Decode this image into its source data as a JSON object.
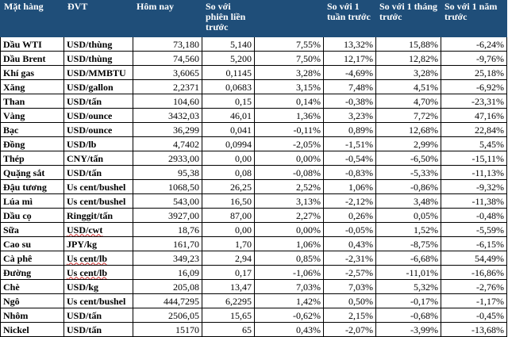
{
  "headers": [
    "Mặt hàng",
    "ĐVT",
    "Hôm nay",
    "So với phiên liền trước",
    "",
    "So với 1 tuần trước",
    "So với 1 tháng trước",
    "So với 1 năm trước"
  ],
  "rows": [
    [
      "Dầu WTI",
      "USD/thùng",
      "73,180",
      "5,140",
      "7,55%",
      "13,32%",
      "15,88%",
      "-6,24%"
    ],
    [
      "Dầu Brent",
      "USD/thùng",
      "74,560",
      "5,200",
      "7,50%",
      "12,17%",
      "12,82%",
      "-9,76%"
    ],
    [
      "Khí gas",
      "USD/MMBTU",
      "3,6065",
      "0,1145",
      "3,28%",
      "-4,69%",
      "3,28%",
      "25,18%"
    ],
    [
      "Xăng",
      "USD/gallon",
      "2,2371",
      "0,0683",
      "3,15%",
      "7,48%",
      "4,51%",
      "-6,92%"
    ],
    [
      "Than",
      "USD/tấn",
      "104,60",
      "0,15",
      "0,14%",
      "-0,38%",
      "4,70%",
      "-23,31%"
    ],
    [
      "Vàng",
      "USD/ounce",
      "3432,03",
      "46,01",
      "1,36%",
      "3,23%",
      "7,72%",
      "47,16%"
    ],
    [
      "Bạc",
      "USD/ounce",
      "36,299",
      "0,041",
      "-0,11%",
      "0,89%",
      "12,68%",
      "22,84%"
    ],
    [
      "Đồng",
      "USD/lb",
      "4,7402",
      "0,0994",
      "-2,05%",
      "-1,51%",
      "2,99%",
      "5,45%"
    ],
    [
      "Thép",
      "CNY/tấn",
      "2933,00",
      "0,00",
      "0,00%",
      "-0,54%",
      "-6,50%",
      "-15,11%"
    ],
    [
      "Quặng sắt",
      "USD/tấn",
      "95,38",
      "0,08",
      "-0,08%",
      "-0,83%",
      "-5,33%",
      "-11,13%"
    ],
    [
      "Đậu tương",
      "Us cent/bushel",
      "1068,50",
      "26,25",
      "2,52%",
      "1,06%",
      "-0,86%",
      "-9,32%"
    ],
    [
      "Lúa mì",
      "Us cent/bushel",
      "543,00",
      "16,50",
      "3,13%",
      "-2,12%",
      "3,48%",
      "-11,38%"
    ],
    [
      "Dầu cọ",
      "Ringgit/tấn",
      "3927,00",
      "87,00",
      "2,27%",
      "0,26%",
      "0,05%",
      "-0,48%"
    ],
    [
      "Sữa",
      "USD/cwt",
      "18,76",
      "0,00",
      "0,00%",
      "-0,05%",
      "1,52%",
      "-5,59%"
    ],
    [
      "Cao su",
      "JPY/kg",
      "161,70",
      "1,70",
      "1,06%",
      "0,43%",
      "-8,75%",
      "-6,15%"
    ],
    [
      "Cà phê",
      "Us cent/lb",
      "349,23",
      "2,94",
      "0,85%",
      "-2,31%",
      "-6,68%",
      "54,49%"
    ],
    [
      "Đường",
      "Us cent/lb",
      "16,09",
      "0,17",
      "-1,06%",
      "-2,57%",
      "-11,01%",
      "-16,86%"
    ],
    [
      "Chè",
      "USD/kg",
      "205,08",
      "13,47",
      "7,03%",
      "7,03%",
      "5,32%",
      "-2,76%"
    ],
    [
      "Ngô",
      "Us cent/bushel",
      "444,7295",
      "6,2295",
      "1,42%",
      "0,50%",
      "-0,17%",
      "-1,17%"
    ],
    [
      "Nhôm",
      "USD/tấn",
      "2506,05",
      "15,65",
      "-0,62%",
      "2,15%",
      "-0,68%",
      "-0,45%"
    ],
    [
      "Nickel",
      "USD/tấn",
      "15170",
      "65",
      "0,43%",
      "-2,07%",
      "-3,99%",
      "-13,68%"
    ]
  ],
  "spellcheck_marked_units": [
    "USD/cwt",
    "Us cent/lb"
  ],
  "colors": {
    "header_bg": "#1f4e79",
    "header_text": "#ffffff",
    "squiggle": "#d32f2f"
  }
}
